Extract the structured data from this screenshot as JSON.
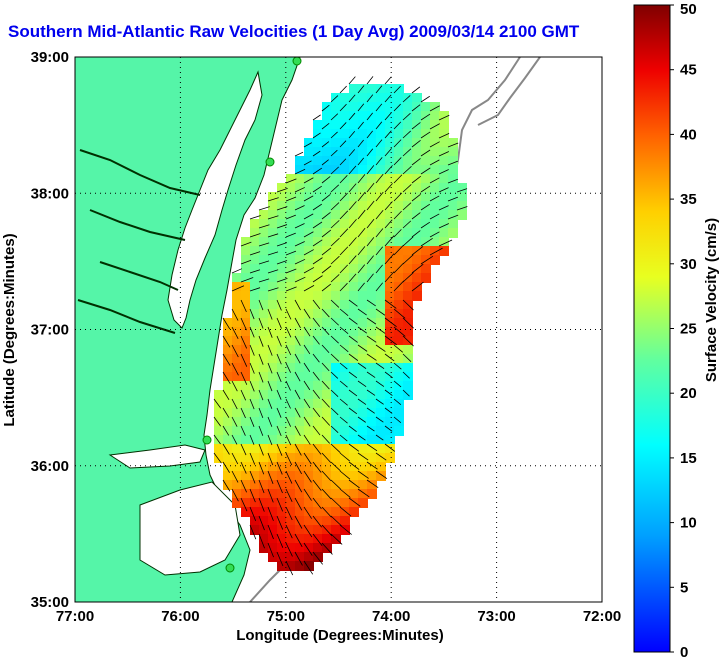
{
  "title": "Southern Mid-Atlantic Raw Velocities (1 Day Avg) 2009/03/14 2100 GMT",
  "map": {
    "xlabel": "Longitude (Degrees:Minutes)",
    "ylabel": "Latitude (Degrees:Minutes)",
    "x_ticks": [
      "77:00",
      "76:00",
      "75:00",
      "74:00",
      "73:00",
      "72:00"
    ],
    "y_ticks": [
      "39:00",
      "38:00",
      "37:00",
      "36:00",
      "35:00"
    ],
    "lon_range": [
      -77,
      -72
    ],
    "lat_range": [
      35,
      39
    ],
    "grid": true
  },
  "colorbar": {
    "label": "Surface Velocity (cm/s)",
    "ticks": [
      "0",
      "5",
      "10",
      "15",
      "20",
      "25",
      "30",
      "35",
      "40",
      "45",
      "50"
    ],
    "range": [
      0,
      50
    ]
  },
  "colors": {
    "land": "#55f5a8",
    "ocean": "#ffffff",
    "title": "#0000ee",
    "coast": "#000000",
    "shelf": "#888888"
  }
}
